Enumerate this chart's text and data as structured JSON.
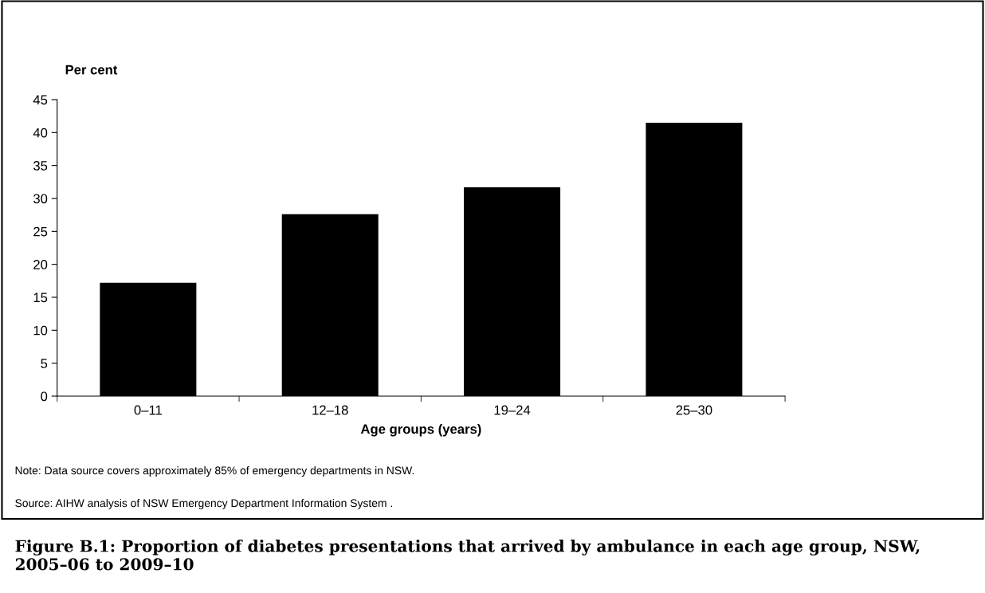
{
  "chart_data": {
    "type": "bar",
    "title": "Figure B.1: Proportion of diabetes presentations that arrived by ambulance in each age group, NSW, 2005–06 to 2009–10",
    "ylabel": "Per cent",
    "xlabel": "Age groups (years)",
    "categories": [
      "0–11",
      "12–18",
      "19–24",
      "25–30"
    ],
    "values": [
      17.2,
      27.6,
      31.7,
      41.5
    ],
    "color": "#000000",
    "ylim": [
      0,
      45
    ],
    "yticks": [
      0,
      5,
      10,
      15,
      20,
      25,
      30,
      35,
      40,
      45
    ],
    "grid": false,
    "legend": false,
    "annotations": [
      "Note: Data source covers approximately 85% of emergency departments in NSW.",
      "Source: AIHW analysis of NSW Emergency Department Information System ."
    ]
  }
}
